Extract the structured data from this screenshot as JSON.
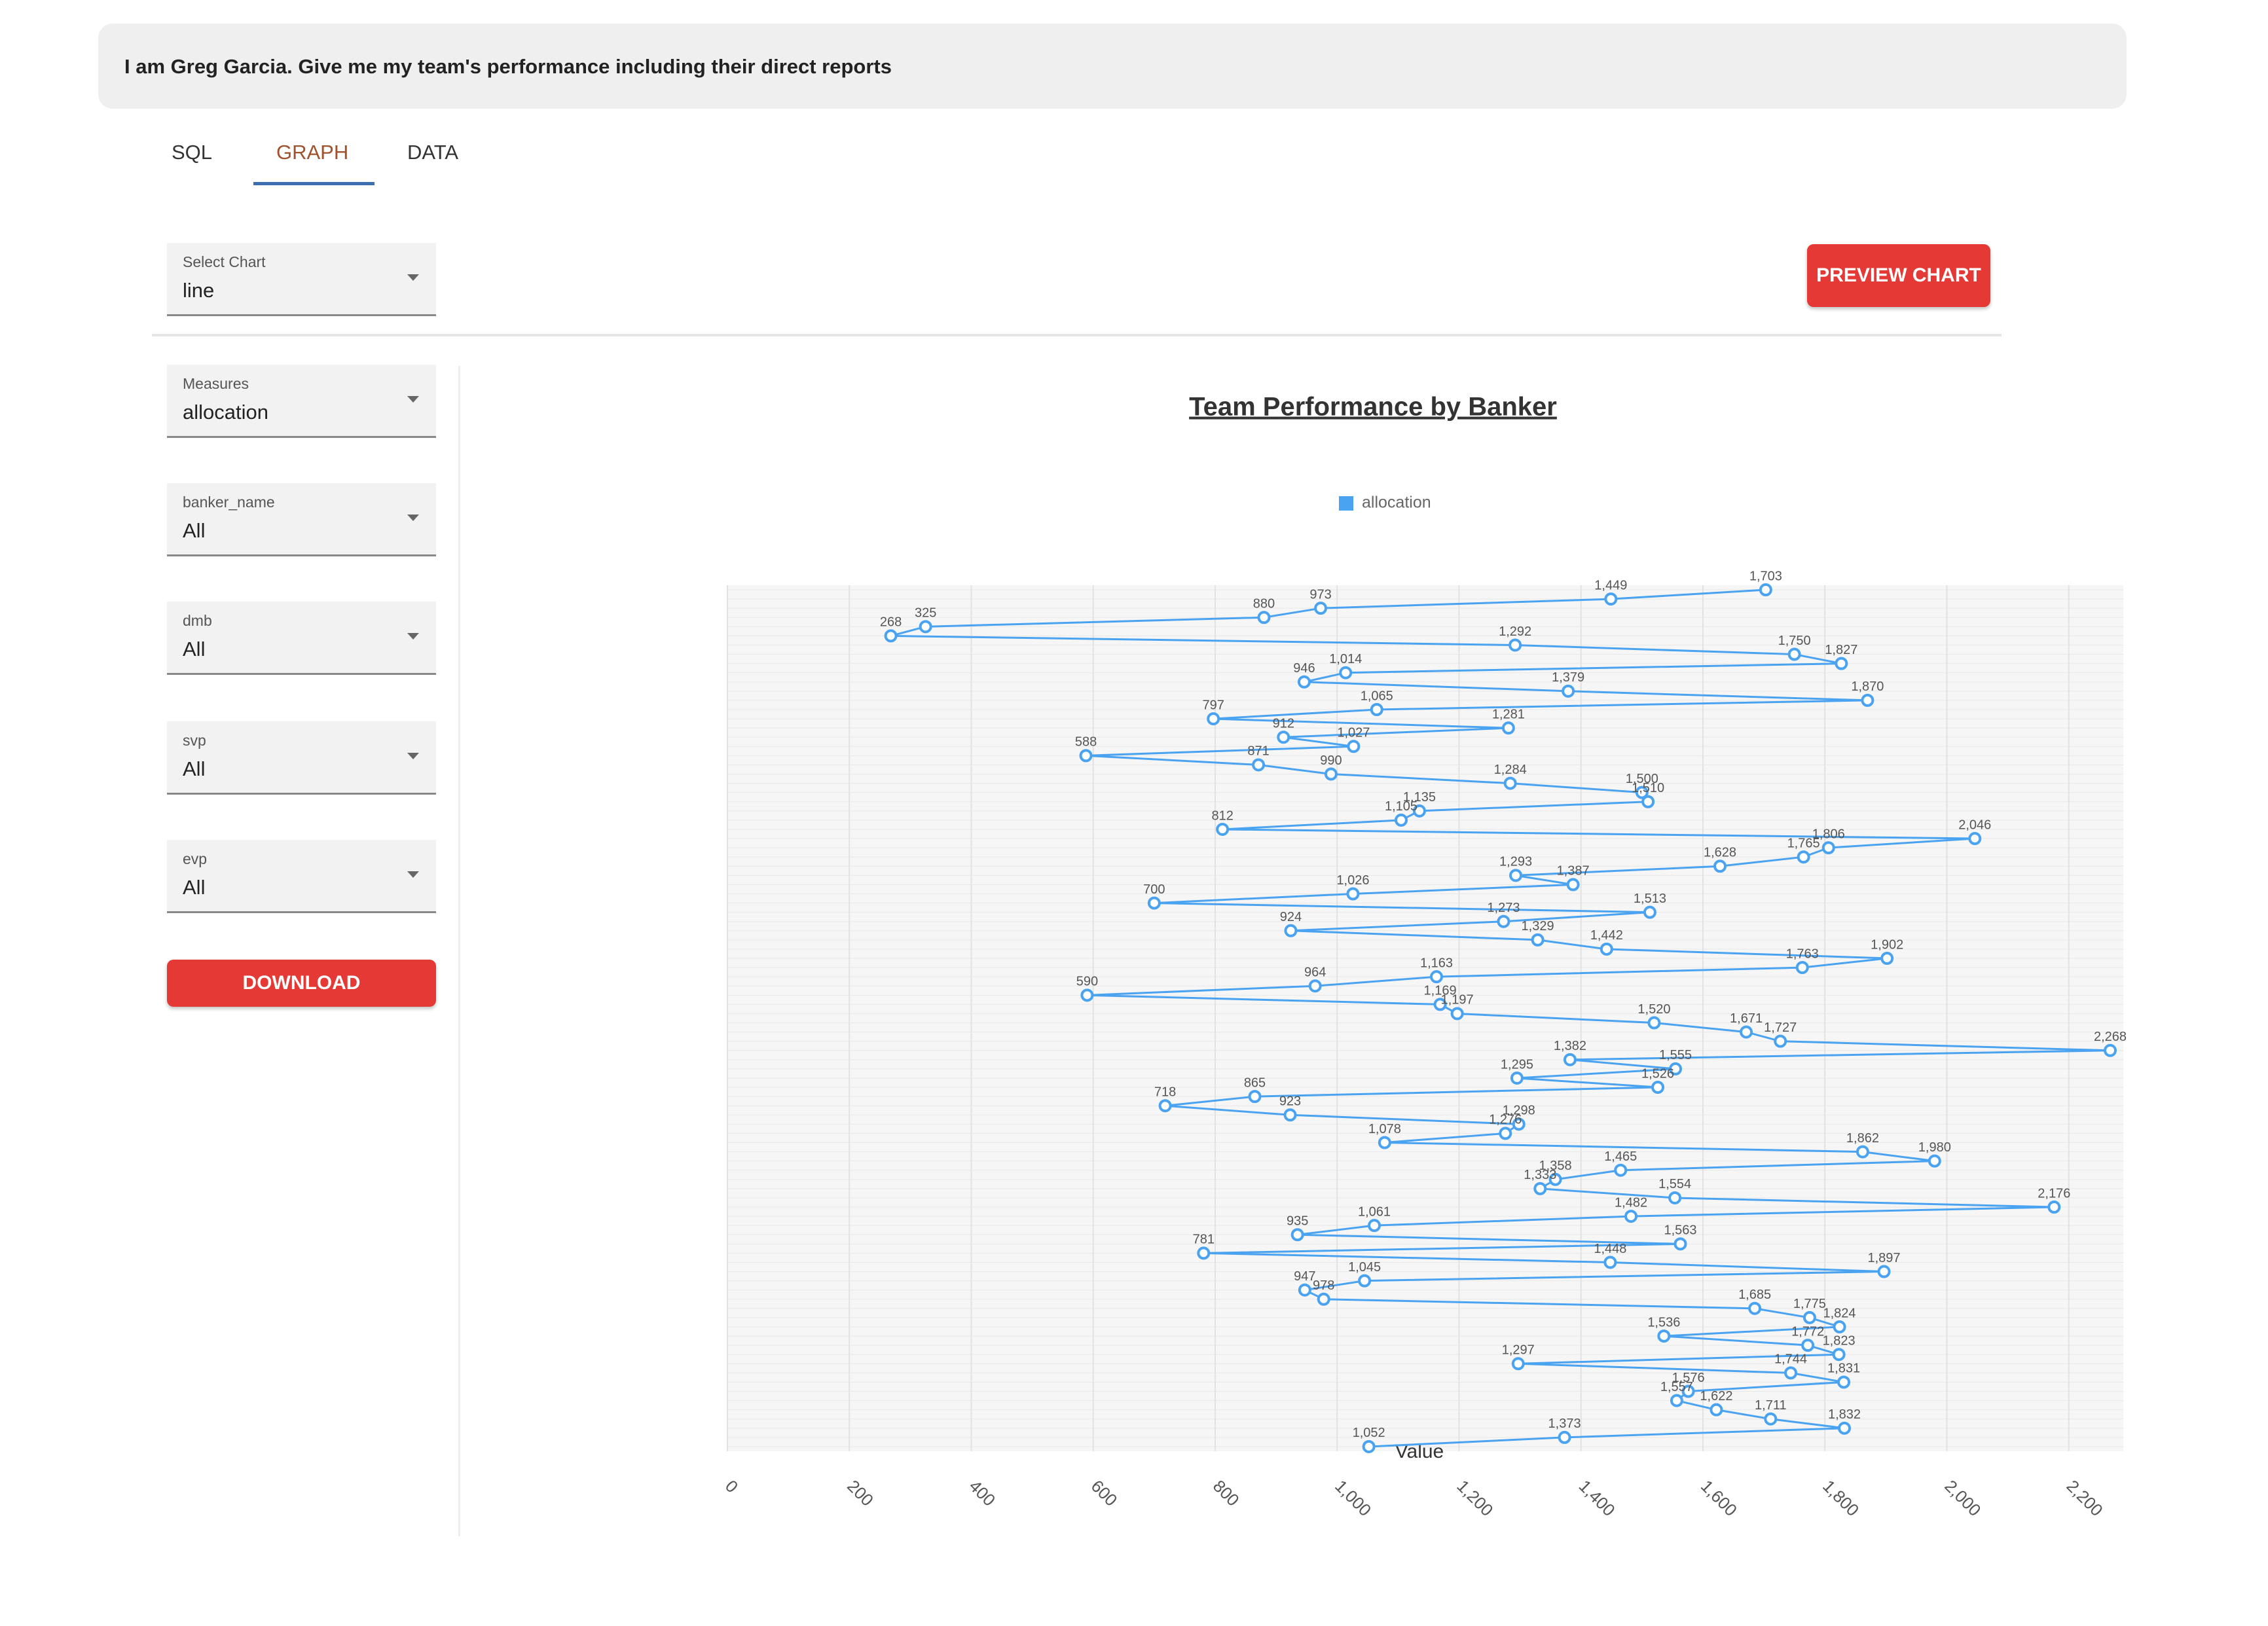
{
  "prompt": "I am Greg Garcia. Give me my team's performance including their direct reports",
  "tabs": [
    "SQL",
    "GRAPH",
    "DATA"
  ],
  "chart_select": {
    "label": "Select Chart",
    "value": "line"
  },
  "preview_button": "PREVIEW CHART",
  "filters": [
    {
      "label": "Measures",
      "value": "allocation"
    },
    {
      "label": "banker_name",
      "value": "All"
    },
    {
      "label": "dmb",
      "value": "All"
    },
    {
      "label": "svp",
      "value": "All"
    },
    {
      "label": "evp",
      "value": "All"
    }
  ],
  "download_button": "DOWNLOAD",
  "chart_data": {
    "type": "line",
    "title": "Team Performance by Banker",
    "xlabel": "Value",
    "categories": [
      null,
      null,
      null,
      null,
      null,
      null,
      null,
      null,
      null,
      null,
      null,
      null,
      null,
      null,
      null,
      null,
      null,
      null,
      null,
      null,
      null,
      null,
      null,
      null,
      null,
      null,
      null,
      null,
      null,
      null,
      null,
      null,
      null,
      null,
      null,
      null,
      null,
      null,
      null,
      null,
      null,
      null,
      null,
      null,
      null,
      null,
      null,
      null,
      null,
      null,
      null,
      null,
      null,
      null,
      null,
      null,
      null,
      null,
      null,
      null,
      null,
      null,
      null,
      null,
      null,
      null,
      null,
      null,
      null,
      null,
      null,
      null,
      null,
      null,
      null,
      null,
      null,
      null,
      null,
      null,
      null,
      null,
      null,
      null,
      null,
      null,
      null,
      null,
      null,
      null,
      null,
      null,
      null,
      null
    ],
    "series": [
      {
        "name": "allocation",
        "color": "#4aa3f0",
        "values": [
          1703,
          1449,
          973,
          880,
          325,
          268,
          1292,
          1750,
          1827,
          1014,
          946,
          1379,
          1870,
          1065,
          797,
          1281,
          912,
          1027,
          588,
          871,
          990,
          1284,
          1500,
          1510,
          1135,
          1105,
          812,
          2046,
          1806,
          1765,
          1628,
          1293,
          1387,
          1026,
          700,
          1513,
          1273,
          924,
          1329,
          1442,
          1902,
          1763,
          1163,
          964,
          590,
          1169,
          1197,
          1520,
          1671,
          1727,
          2268,
          1382,
          1555,
          1295,
          1526,
          865,
          718,
          923,
          1298,
          1276,
          1078,
          1862,
          1980,
          1465,
          1358,
          1333,
          1554,
          2176,
          1482,
          1061,
          935,
          1563,
          781,
          1448,
          1897,
          1045,
          947,
          978,
          1685,
          1775,
          1824,
          1536,
          1772,
          1823,
          1297,
          1744,
          1831,
          1576,
          1557,
          1622,
          1711,
          1832,
          1373,
          1052
        ],
        "value_labels": [
          "1,703",
          "1,449",
          "973",
          "880",
          "325",
          "268",
          "1,292",
          "1,750",
          "1,827",
          "1,014",
          "946",
          "1,379",
          "1,870",
          "1,065",
          "797",
          "1,281",
          "912",
          "1,027",
          "588",
          "871",
          "990",
          "1,284",
          "1,500",
          "1,510",
          "1,135",
          "1,105",
          "812",
          "2,046",
          "1,806",
          "1,765",
          "1,628",
          "1,293",
          "1,387",
          "1,026",
          "700",
          "1,513",
          "1,273",
          "924",
          "1,329",
          "1,442",
          "1,902",
          "1,763",
          "1,163",
          "964",
          "590",
          "1,169",
          "1,197",
          "1,520",
          "1,671",
          "1,727",
          "2,268",
          "1,382",
          "1,555",
          "1,295",
          "1,526",
          "865",
          "718",
          "923",
          "1,298",
          "1,276",
          "1,078",
          "1,862",
          "1,980",
          "1,465",
          "1,358",
          "1,333",
          "1,554",
          "2,176",
          "1,482",
          "1,061",
          "935",
          "1,563",
          "781",
          "1,448",
          "1,897",
          "1,045",
          "947",
          "978",
          "1,685",
          "1,775",
          "1,824",
          "1,536",
          "1,772",
          "1,823",
          "1,297",
          "1,744",
          "1,831",
          "1,576",
          "1,557",
          "1,622",
          "1,711",
          "1,832",
          "1,373",
          "1,052"
        ]
      }
    ],
    "xlim": [
      0,
      2268
    ],
    "xticks": [
      0,
      200,
      400,
      600,
      800,
      {
        "value": 1000,
        "label": "1,000"
      },
      {
        "value": 1200,
        "label": "1,200"
      },
      {
        "value": 1400,
        "label": "1,400"
      },
      {
        "value": 1600,
        "label": "1,600"
      },
      {
        "value": 1800,
        "label": "1,800"
      },
      {
        "value": 2000,
        "label": "2,000"
      },
      {
        "value": 2200,
        "label": "2,200"
      }
    ],
    "grid": true
  }
}
